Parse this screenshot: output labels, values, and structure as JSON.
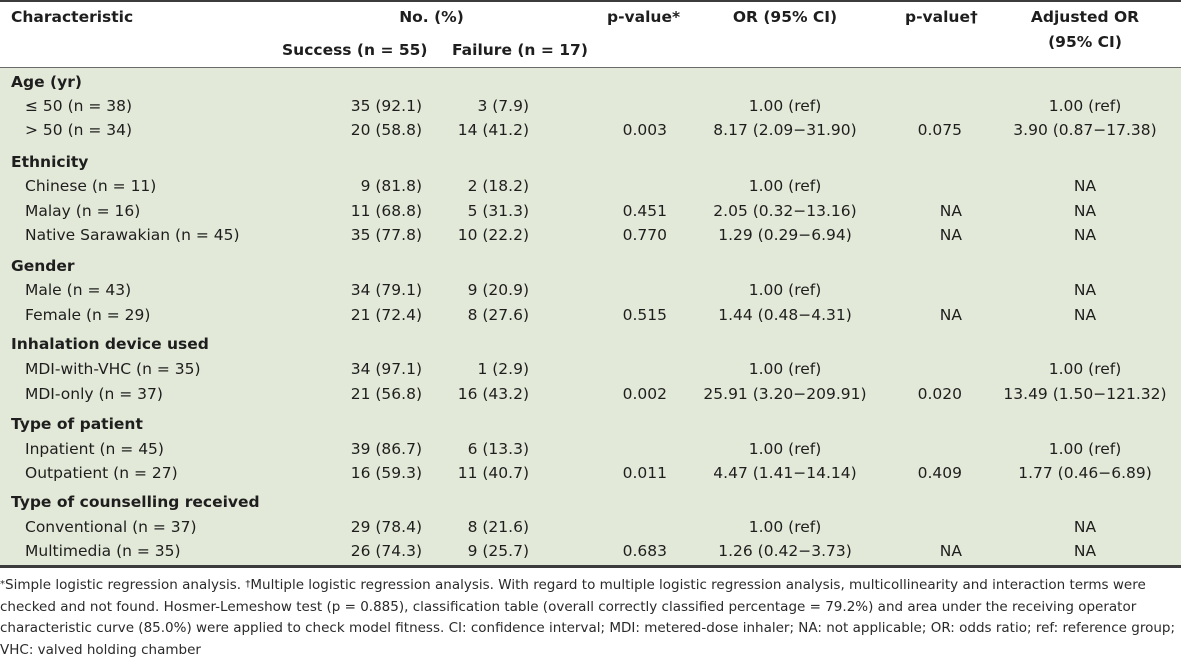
{
  "header": {
    "characteristic": "Characteristic",
    "no_pct": "No. (%)",
    "success": "Success (n = 55)",
    "failure": "Failure (n = 17)",
    "pvalue1": "p-value*",
    "or": "OR (95% CI)",
    "pvalue2": "p-value†",
    "adj_or_line1": "Adjusted OR",
    "adj_or_line2": "(95% CI)"
  },
  "rows": [
    {
      "type": "group",
      "label": "Age (yr)"
    },
    {
      "type": "row",
      "label": "≤ 50 (n = 38)",
      "success": "35 (92.1)",
      "failure": "3 (7.9)",
      "p1": "",
      "or": "1.00 (ref)",
      "p2": "",
      "aor": "1.00 (ref)"
    },
    {
      "type": "row",
      "label": "> 50 (n = 34)",
      "success": "20 (58.8)",
      "failure": "14 (41.2)",
      "p1": "0.003",
      "or": "8.17 (2.09−31.90)",
      "p2": "0.075",
      "aor": "3.90 (0.87−17.38)"
    },
    {
      "type": "group",
      "label": "Ethnicity"
    },
    {
      "type": "row",
      "label": "Chinese (n = 11)",
      "success": "9 (81.8)",
      "failure": "2 (18.2)",
      "p1": "",
      "or": "1.00 (ref)",
      "p2": "",
      "aor": "NA"
    },
    {
      "type": "row",
      "label": "Malay (n = 16)",
      "success": "11 (68.8)",
      "failure": "5 (31.3)",
      "p1": "0.451",
      "or": "2.05 (0.32−13.16)",
      "p2": "NA",
      "aor": "NA"
    },
    {
      "type": "row",
      "label": "Native Sarawakian (n = 45)",
      "success": "35 (77.8)",
      "failure": "10 (22.2)",
      "p1": "0.770",
      "or": "1.29 (0.29−6.94)",
      "p2": "NA",
      "aor": "NA"
    },
    {
      "type": "group",
      "label": "Gender"
    },
    {
      "type": "row",
      "label": "Male (n = 43)",
      "success": "34 (79.1)",
      "failure": "9 (20.9)",
      "p1": "",
      "or": "1.00 (ref)",
      "p2": "",
      "aor": "NA"
    },
    {
      "type": "row",
      "label": "Female (n = 29)",
      "success": "21 (72.4)",
      "failure": "8 (27.6)",
      "p1": "0.515",
      "or": "1.44 (0.48−4.31)",
      "p2": "NA",
      "aor": "NA"
    },
    {
      "type": "group",
      "label": "Inhalation device used"
    },
    {
      "type": "row",
      "label": "MDI-with-VHC (n = 35)",
      "success": "34 (97.1)",
      "failure": "1 (2.9)",
      "p1": "",
      "or": "1.00 (ref)",
      "p2": "",
      "aor": "1.00 (ref)"
    },
    {
      "type": "row",
      "label": "MDI-only (n = 37)",
      "success": "21 (56.8)",
      "failure": "16 (43.2)",
      "p1": "0.002",
      "or": "25.91 (3.20−209.91)",
      "p2": "0.020",
      "aor": "13.49 (1.50−121.32)"
    },
    {
      "type": "group",
      "label": "Type of patient"
    },
    {
      "type": "row",
      "label": "Inpatient (n = 45)",
      "success": "39 (86.7)",
      "failure": "6 (13.3)",
      "p1": "",
      "or": "1.00 (ref)",
      "p2": "",
      "aor": "1.00 (ref)"
    },
    {
      "type": "row",
      "label": "Outpatient (n = 27)",
      "success": "16 (59.3)",
      "failure": "11 (40.7)",
      "p1": "0.011",
      "or": "4.47 (1.41−14.14)",
      "p2": "0.409",
      "aor": "1.77 (0.46−6.89)"
    },
    {
      "type": "group",
      "label": "Type of counselling received"
    },
    {
      "type": "row",
      "label": "Conventional (n = 37)",
      "success": "29 (78.4)",
      "failure": "8 (21.6)",
      "p1": "",
      "or": "1.00 (ref)",
      "p2": "",
      "aor": "NA"
    },
    {
      "type": "row",
      "label": "Multimedia (n = 35)",
      "success": "26 (74.3)",
      "failure": "9 (25.7)",
      "p1": "0.683",
      "or": "1.26 (0.42−3.73)",
      "p2": "NA",
      "aor": "NA"
    }
  ],
  "footnote": {
    "mark1": "*",
    "text1": "Simple logistic regression analysis. ",
    "mark2": "†",
    "text2": "Multiple logistic regression analysis. With regard to multiple logistic regression analysis, multicollinearity and interaction terms were checked and not found. Hosmer-Lemeshow test (p = 0.885), classification table (overall correctly classified percentage = 79.2%) and area under the receiving operator characteristic curve (85.0%) were applied to check model fitness. CI: confidence interval; MDI: metered-dose inhaler; NA: not applicable; OR: odds ratio; ref: reference group; VHC: valved holding chamber"
  }
}
